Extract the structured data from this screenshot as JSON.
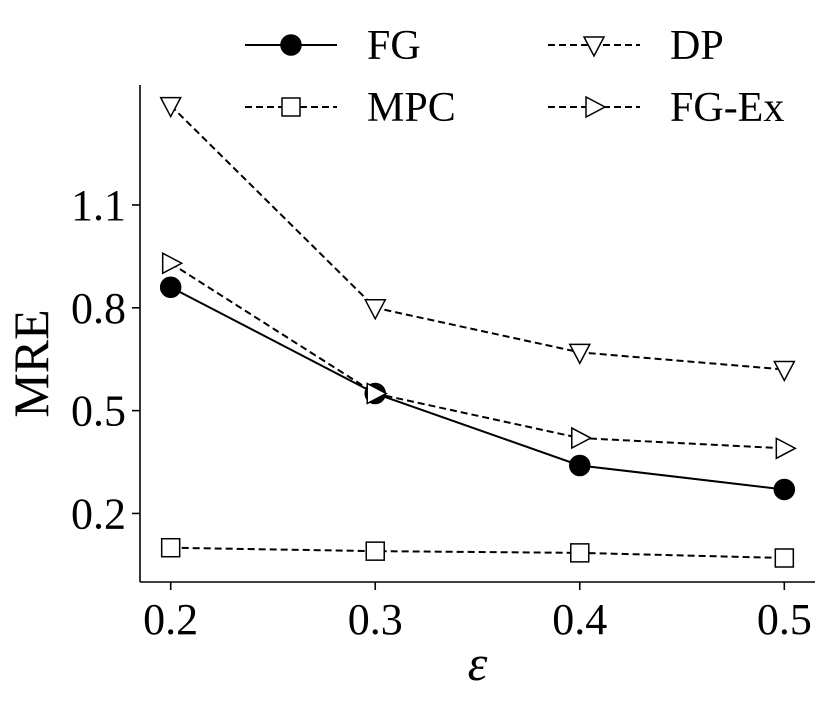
{
  "chart_data": {
    "type": "line",
    "xlabel": "ε",
    "ylabel": "MRE",
    "x": [
      0.2,
      0.3,
      0.4,
      0.5
    ],
    "xticks": [
      "0.2",
      "0.3",
      "0.4",
      "0.5"
    ],
    "yticks": [
      "0.2",
      "0.5",
      "0.8",
      "1.1"
    ],
    "xlim": [
      0.185,
      0.515
    ],
    "ylim": [
      0.0,
      1.45
    ],
    "grid": false,
    "legend_position": "top",
    "series": [
      {
        "name": "FG",
        "values": [
          0.86,
          0.55,
          0.34,
          0.27
        ],
        "marker": "circle-filled",
        "linestyle": "solid",
        "color": "#000000"
      },
      {
        "name": "DP",
        "values": [
          1.39,
          0.8,
          0.67,
          0.62
        ],
        "marker": "triangle-down-open",
        "linestyle": "dashed",
        "color": "#000000"
      },
      {
        "name": "MPC",
        "values": [
          0.1,
          0.09,
          0.085,
          0.07
        ],
        "marker": "square-open",
        "linestyle": "dashed",
        "color": "#000000"
      },
      {
        "name": "FG-Ex",
        "values": [
          0.93,
          0.55,
          0.42,
          0.39
        ],
        "marker": "triangle-right-open",
        "linestyle": "dashed",
        "color": "#000000"
      }
    ]
  }
}
